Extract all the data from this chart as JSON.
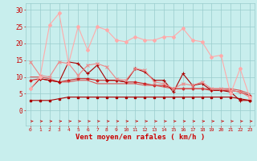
{
  "x": [
    0,
    1,
    2,
    3,
    4,
    5,
    6,
    7,
    8,
    9,
    10,
    11,
    12,
    13,
    14,
    15,
    16,
    17,
    18,
    19,
    20,
    21,
    22,
    23
  ],
  "line_dark_red": [
    6.5,
    9.5,
    9,
    8.5,
    14.5,
    14,
    11,
    13.5,
    9,
    9,
    8.5,
    12.5,
    11.5,
    9,
    9,
    5.5,
    11,
    7.5,
    8,
    6,
    6,
    5.5,
    3,
    3
  ],
  "line_dark_red2": [
    9,
    9.5,
    9,
    8.5,
    9,
    9.5,
    9.5,
    9,
    9,
    9,
    8.5,
    8.5,
    8,
    7.5,
    7.5,
    6.5,
    6.5,
    6.5,
    6.5,
    6,
    6,
    6,
    5.5,
    4.5
  ],
  "line_flat_dark": [
    3,
    3,
    3,
    3.5,
    4,
    4,
    4,
    4,
    4,
    4,
    4,
    4,
    4,
    4,
    4,
    4,
    4,
    4,
    4,
    4,
    4,
    4,
    3.5,
    3
  ],
  "line_med_red": [
    10,
    10,
    9.5,
    8.5,
    8.5,
    9,
    9,
    8,
    8,
    8,
    8,
    8,
    7.5,
    7.5,
    7,
    6.5,
    6.5,
    6.5,
    6.5,
    6.5,
    6.5,
    6.5,
    6,
    5
  ],
  "line_light_red": [
    14.5,
    10.5,
    10,
    14.5,
    14,
    10.5,
    13.5,
    14,
    13,
    9.5,
    9,
    12.5,
    12,
    8.5,
    8,
    6.5,
    8,
    7.5,
    8.5,
    6.5,
    6.5,
    6,
    5.5,
    4
  ],
  "line_lightest": [
    6.5,
    10,
    25.5,
    29,
    14,
    25,
    18,
    25,
    24,
    21,
    20.5,
    22,
    21,
    21,
    22,
    22,
    24.5,
    21,
    20.5,
    16,
    16.5,
    5,
    12.5,
    4
  ],
  "bg_color": "#c8eeed",
  "grid_color": "#99cccc",
  "color_darkest": "#aa0000",
  "color_dark": "#cc2222",
  "color_medium": "#dd5555",
  "color_light": "#ee8888",
  "color_lightest": "#ffaaaa",
  "xlabel": "Vent moyen/en rafales ( km/h )",
  "tick_color": "#cc0000",
  "yticks": [
    0,
    5,
    10,
    15,
    20,
    25,
    30
  ],
  "ylim": [
    -4.5,
    32
  ],
  "xlim": [
    -0.5,
    23.5
  ]
}
